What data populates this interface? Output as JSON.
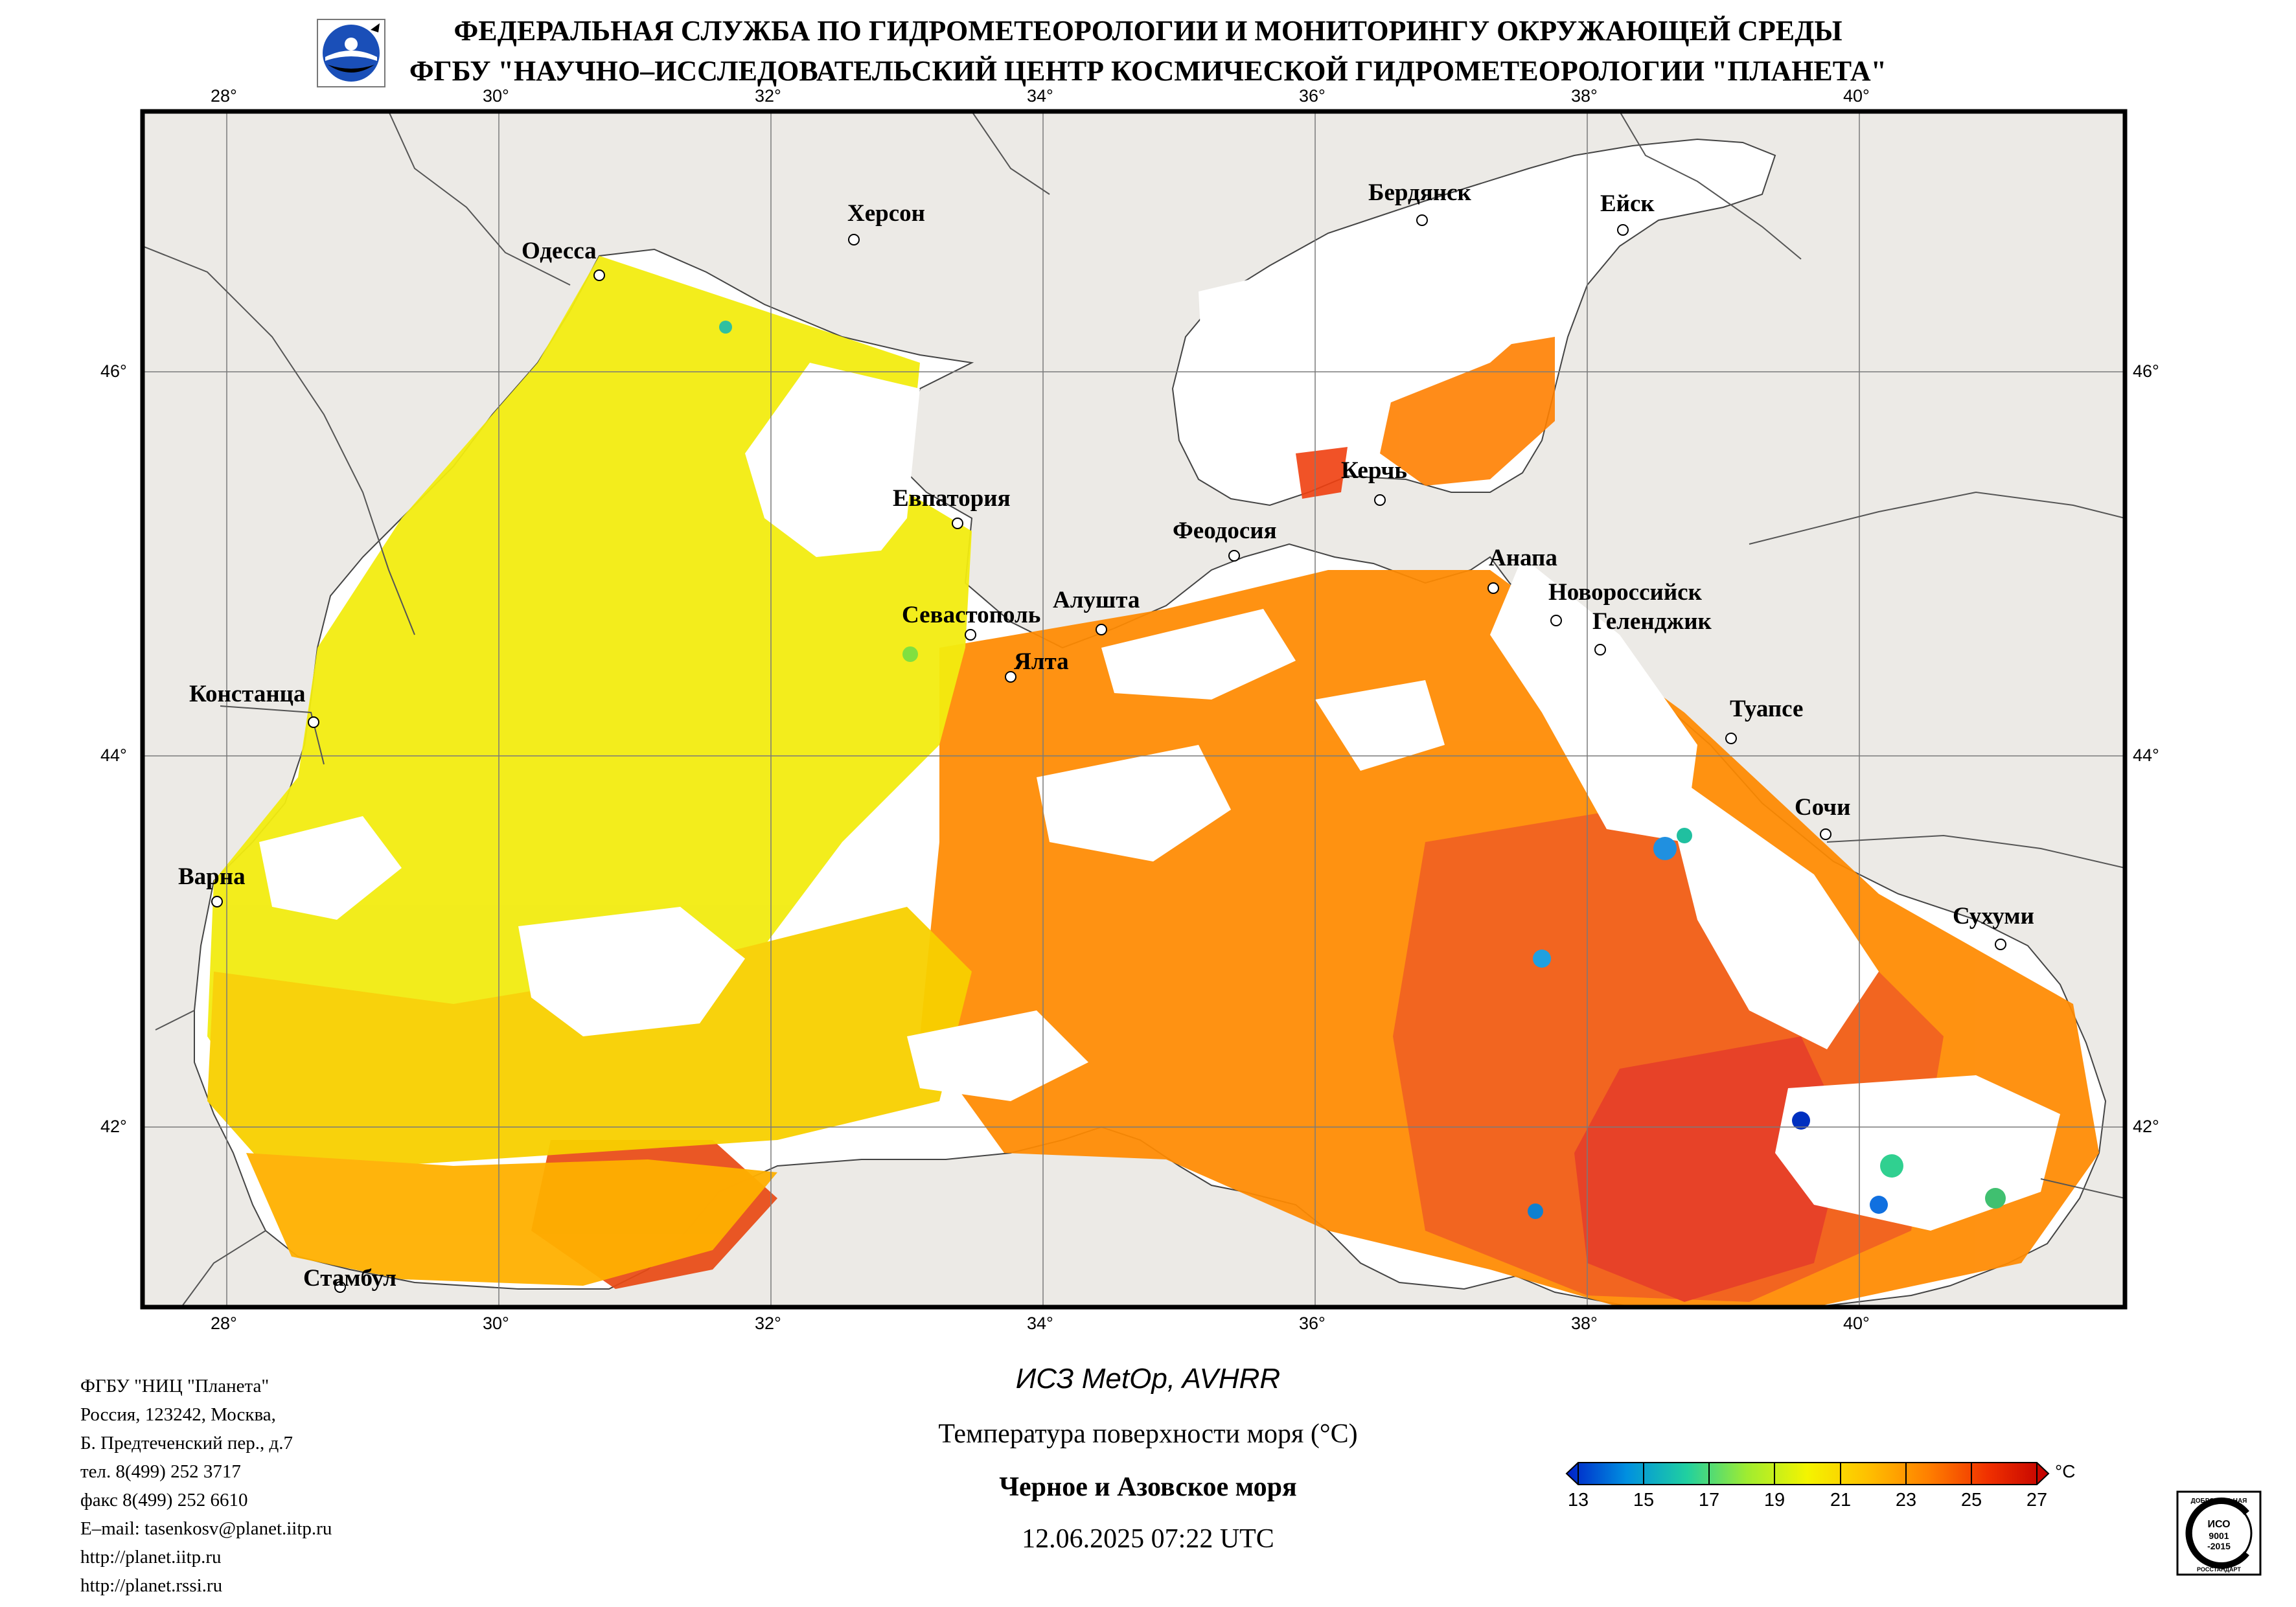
{
  "header": {
    "line1": "ФЕДЕРАЛЬНАЯ СЛУЖБА ПО ГИДРОМЕТЕОРОЛОГИИ И МОНИТОРИНГУ ОКРУЖАЮЩЕЙ СРЕДЫ",
    "line2": "ФГБУ \"НАУЧНО–ИССЛЕДОВАТЕЛЬСКИЙ ЦЕНТР КОСМИЧЕСКОЙ ГИДРОМЕТЕОРОЛОГИИ \"ПЛАНЕТА\""
  },
  "map": {
    "longitudes": [
      "28°",
      "30°",
      "32°",
      "34°",
      "36°",
      "38°",
      "40°"
    ],
    "latitudes": [
      "46°",
      "44°",
      "42°"
    ],
    "cities": {
      "odessa": "Одесса",
      "kherson": "Херсон",
      "berdyansk": "Бердянск",
      "yeysk": "Ейск",
      "kerch": "Керчь",
      "evpatoria": "Евпатория",
      "feodosia": "Феодосия",
      "anapa": "Анапа",
      "novorossiysk": "Новороссийск",
      "gelendzhik": "Геленджик",
      "alushta": "Алушта",
      "sevastopol": "Севастополь",
      "yalta": "Ялта",
      "constanta": "Констанца",
      "tuapse": "Туапсе",
      "sochi": "Сочи",
      "varna": "Варна",
      "sukhumi": "Сухуми",
      "istanbul": "Стамбул"
    },
    "colors": {
      "land": "#eceae6",
      "cloud": "#ffffff",
      "border": "#000000"
    }
  },
  "address": [
    "ФГБУ \"НИЦ \"Планета\"",
    "Россия, 123242, Москва,",
    "Б. Предтеченский пер., д.7",
    "тел. 8(499) 252 3717",
    "факс 8(499) 252 6610",
    "E–mail: tasenkosv@planet.iitp.ru",
    "http://planet.iitp.ru",
    "http://planet.rssi.ru"
  ],
  "caption": {
    "satellite": "ИСЗ MetOp, AVHRR",
    "parameter": "Температура поверхности моря (°C)",
    "region": "Черное и Азовское моря",
    "datetime": "12.06.2025 07:22 UTC"
  },
  "colorbar": {
    "unit": "°C",
    "ticks": [
      "13",
      "15",
      "17",
      "19",
      "21",
      "23",
      "25",
      "27"
    ],
    "colors": [
      "#0020c8",
      "#0090e0",
      "#20d0a0",
      "#a0ec30",
      "#f4f400",
      "#ffc000",
      "#ff8000",
      "#f03000",
      "#c00000"
    ]
  },
  "iso_badge": {
    "top": "ДОБРОВОЛЬНАЯ",
    "center": "ИСО",
    "code": "9001",
    "year": "-2015",
    "bottom": "РОССТАНДАРТ"
  }
}
